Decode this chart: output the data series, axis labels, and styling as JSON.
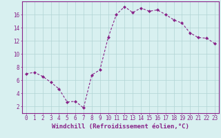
{
  "x": [
    0,
    1,
    2,
    3,
    4,
    5,
    6,
    7,
    8,
    9,
    10,
    11,
    12,
    13,
    14,
    15,
    16,
    17,
    18,
    19,
    20,
    21,
    22,
    23
  ],
  "y": [
    7.0,
    7.2,
    6.6,
    5.7,
    4.7,
    2.7,
    2.8,
    1.8,
    6.8,
    7.6,
    12.5,
    16.0,
    17.2,
    16.3,
    17.0,
    16.5,
    16.7,
    16.0,
    15.2,
    14.7,
    13.2,
    12.5,
    12.4,
    11.6
  ],
  "line_color": "#882288",
  "marker": "D",
  "marker_size": 2.0,
  "linewidth": 0.8,
  "xlabel": "Windchill (Refroidissement éolien,°C)",
  "xlabel_fontsize": 6.5,
  "bg_color": "#d8f0f0",
  "grid_color": "#b0d4d4",
  "yticks": [
    2,
    4,
    6,
    8,
    10,
    12,
    14,
    16
  ],
  "xticks": [
    0,
    1,
    2,
    3,
    4,
    5,
    6,
    7,
    8,
    9,
    10,
    11,
    12,
    13,
    14,
    15,
    16,
    17,
    18,
    19,
    20,
    21,
    22,
    23
  ],
  "ylim": [
    1.0,
    18.0
  ],
  "xlim": [
    -0.5,
    23.5
  ],
  "tick_fontsize": 5.5,
  "spine_color": "#882288"
}
